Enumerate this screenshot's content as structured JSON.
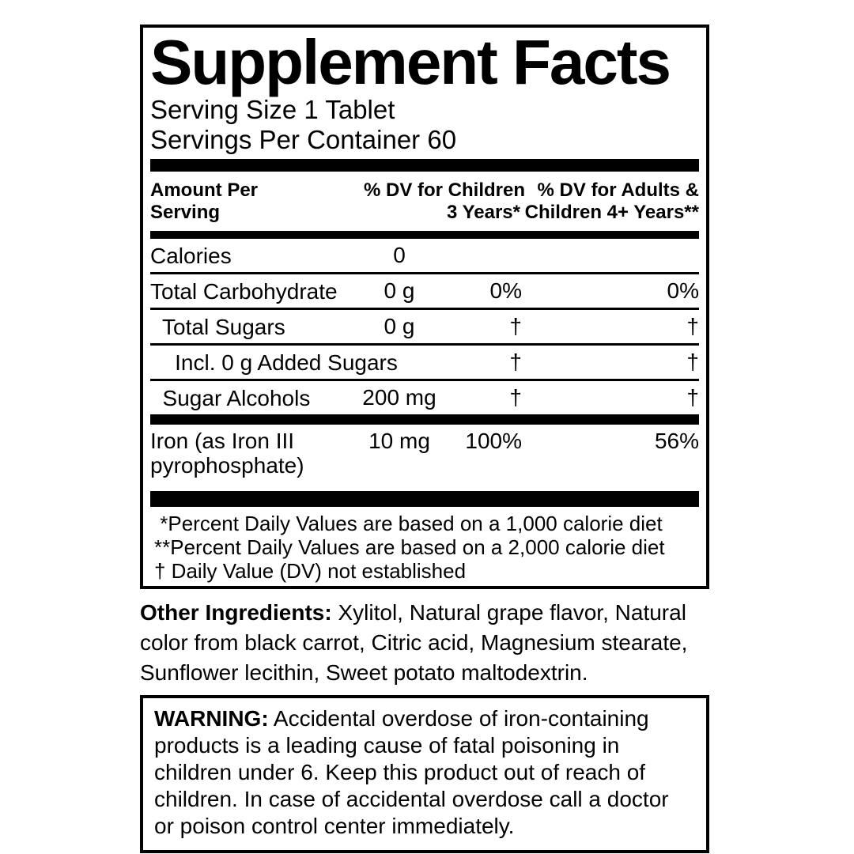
{
  "panel": {
    "title": "Supplement Facts",
    "serving_size": "Serving Size 1 Tablet",
    "servings_per_container": "Servings Per Container 60",
    "columns": {
      "amount_per_serving": "Amount Per\nServing",
      "dv_children": "% DV for Children\n3 Years*",
      "dv_adults": "% DV for Adults &\nChildren 4+ Years**"
    },
    "rows": [
      {
        "name": "Calories",
        "amount": "0",
        "child_dv": "",
        "adult_dv": ""
      },
      {
        "name": "Total Carbohydrate",
        "amount": "0 g",
        "child_dv": "0%",
        "adult_dv": "0%"
      },
      {
        "name": "  Total Sugars",
        "amount": "0 g",
        "child_dv": "†",
        "adult_dv": "†"
      },
      {
        "name": "    Incl. 0 g Added Sugars",
        "amount": "",
        "child_dv": "†",
        "adult_dv": "†"
      },
      {
        "name": "  Sugar Alcohols",
        "amount": "200 mg",
        "child_dv": "†",
        "adult_dv": "†"
      },
      {
        "name": "Iron (as Iron III\npyrophosphate)",
        "amount": "10 mg",
        "child_dv": "100%",
        "adult_dv": "56%"
      }
    ],
    "footnotes": " *Percent Daily Values are based on a 1,000 calorie diet\n**Percent Daily Values are based on a 2,000 calorie diet\n† Daily Value (DV) not established",
    "other_ingredients": {
      "lead": "Other Ingredients:",
      "text": " Xylitol, Natural grape flavor, Natural\ncolor from black carrot, Citric acid, Magnesium stearate,\nSunflower lecithin, Sweet potato maltodextrin."
    },
    "warning": {
      "lead": "WARNING:",
      "text": " Accidental overdose of iron-containing\nproducts is a leading cause of fatal poisoning in\nchildren under 6. Keep this product out of reach of\nchildren. In case of accidental overdose call a doctor\nor poison control center immediately."
    },
    "colors": {
      "ink": "#000000",
      "background": "#ffffff"
    }
  }
}
